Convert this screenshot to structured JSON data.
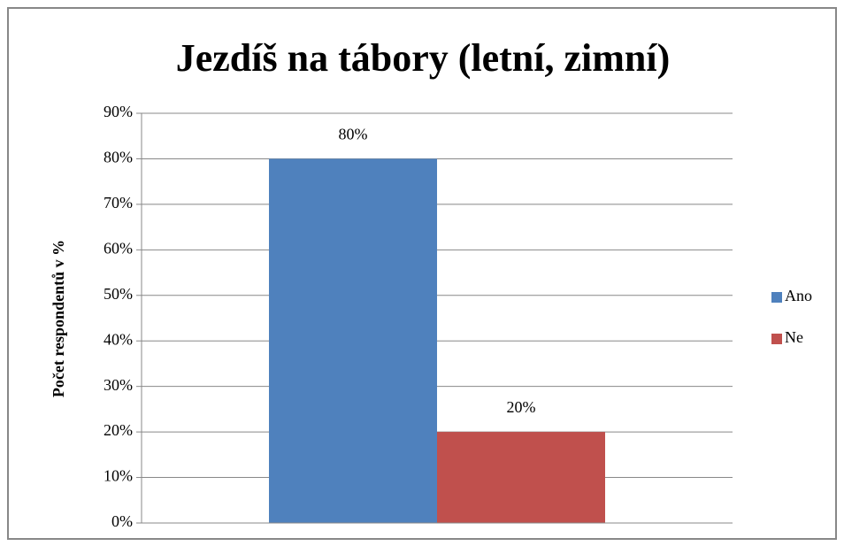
{
  "chart_data": {
    "type": "bar",
    "title": "Jezdíš na tábory (letní, zimní)",
    "y_axis_label": "Počet respondentů v %",
    "categories": [
      null
    ],
    "series": [
      {
        "name": "Ano",
        "color": "#4f81bd",
        "values": [
          80
        ],
        "value_labels": [
          "80%"
        ]
      },
      {
        "name": "Ne",
        "color": "#c0504d",
        "values": [
          20
        ],
        "value_labels": [
          "20%"
        ]
      }
    ],
    "ylim": [
      0,
      90
    ],
    "yticks": [
      {
        "value": 0,
        "label": "0%"
      },
      {
        "value": 10,
        "label": "10%"
      },
      {
        "value": 20,
        "label": "20%"
      },
      {
        "value": 30,
        "label": "30%"
      },
      {
        "value": 40,
        "label": "40%"
      },
      {
        "value": 50,
        "label": "50%"
      },
      {
        "value": 60,
        "label": "60%"
      },
      {
        "value": 70,
        "label": "70%"
      },
      {
        "value": 80,
        "label": "80%"
      },
      {
        "value": 90,
        "label": "90%"
      }
    ],
    "grid": true,
    "legend": "right"
  }
}
